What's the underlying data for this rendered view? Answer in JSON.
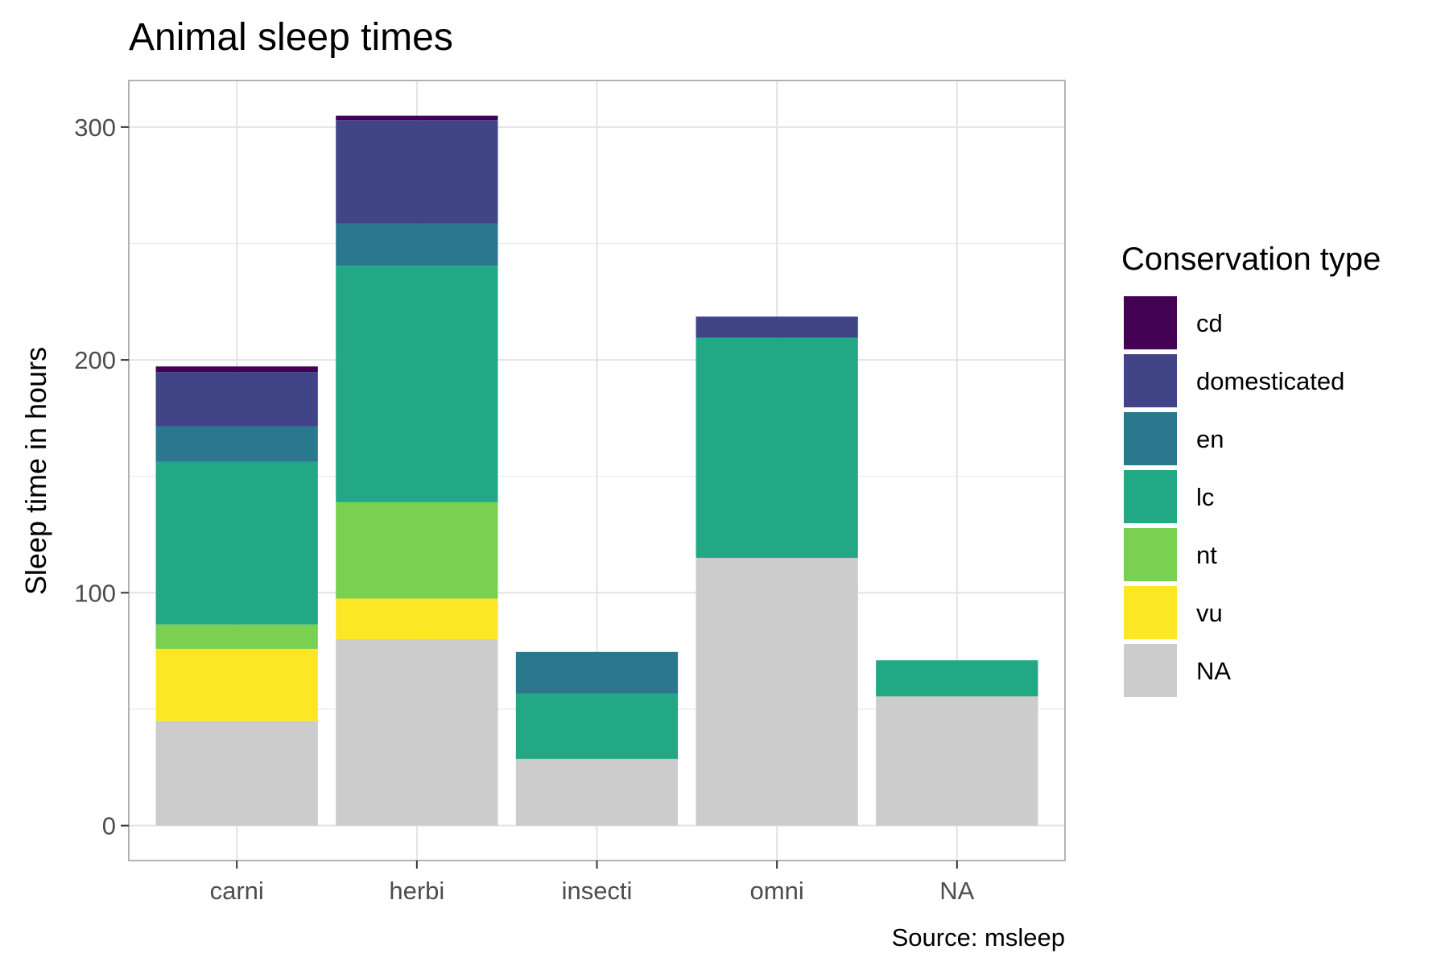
{
  "chart_data": {
    "type": "bar",
    "stacked": true,
    "title": "Animal sleep times",
    "ylabel": "Sleep time in hours",
    "xlabel": "",
    "caption": "Source: msleep",
    "ylim": [
      -15,
      320
    ],
    "yticks": [
      0,
      100,
      200,
      300
    ],
    "grid": true,
    "categories": [
      "carni",
      "herbi",
      "insecti",
      "omni",
      "NA"
    ],
    "legend": {
      "title": "Conservation type",
      "position": "right"
    },
    "series": [
      {
        "name": "NA",
        "color": "#cccccc",
        "values": [
          44.9,
          80.1,
          28.6,
          115.0,
          55.5
        ]
      },
      {
        "name": "vu",
        "color": "#fde725",
        "values": [
          31.0,
          17.4,
          0,
          0,
          0
        ]
      },
      {
        "name": "nt",
        "color": "#7ad151",
        "values": [
          10.5,
          41.4,
          0,
          0,
          0
        ]
      },
      {
        "name": "lc",
        "color": "#22a884",
        "values": [
          69.8,
          101.5,
          28.0,
          94.5,
          15.5
        ]
      },
      {
        "name": "en",
        "color": "#2a788e",
        "values": [
          15.3,
          18.1,
          18.0,
          0,
          0
        ]
      },
      {
        "name": "domesticated",
        "color": "#414487",
        "values": [
          23.3,
          44.5,
          0,
          9.1,
          0
        ]
      },
      {
        "name": "cd",
        "color": "#440154",
        "values": [
          2.4,
          1.9,
          0,
          0,
          0
        ]
      }
    ]
  }
}
